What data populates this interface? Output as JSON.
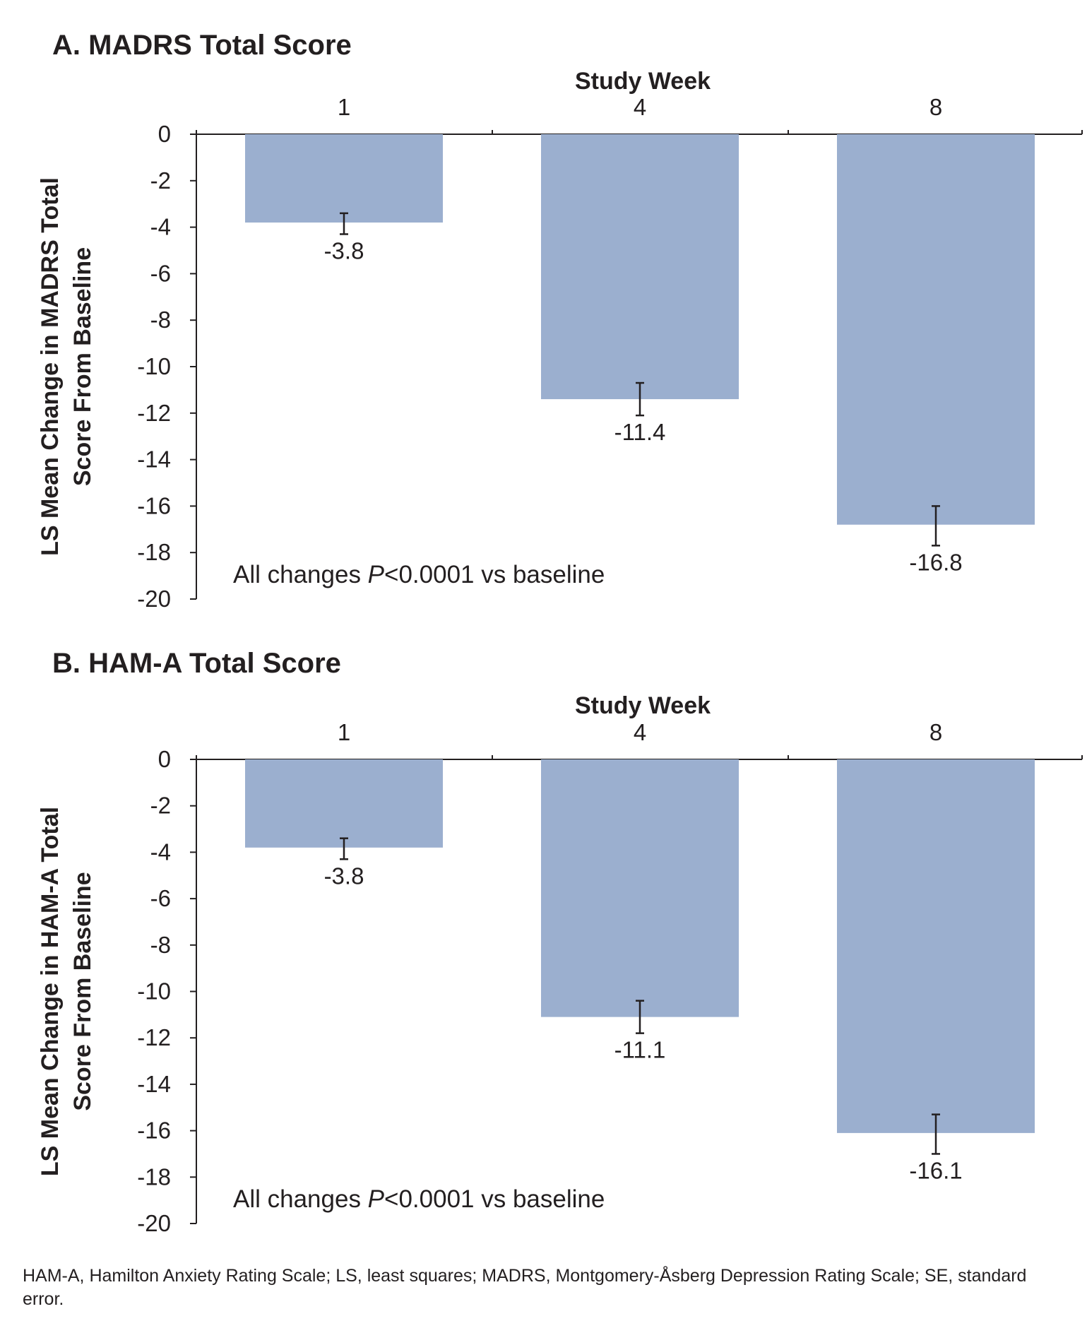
{
  "chart_data": [
    {
      "type": "bar",
      "title": "A. MADRS Total Score",
      "xlabel": "Study Week",
      "ylabel_lines": [
        "LS Mean Change in MADRS Total",
        "Score From Baseline"
      ],
      "categories": [
        "1",
        "4",
        "8"
      ],
      "values": [
        -3.8,
        -11.4,
        -16.8
      ],
      "value_labels": [
        "-3.8",
        "-11.4",
        "-16.8"
      ],
      "error_bars": [
        {
          "low": -4.3,
          "high": -3.4
        },
        {
          "low": -12.1,
          "high": -10.7
        },
        {
          "low": -17.7,
          "high": -16.0
        }
      ],
      "ylim": [
        -20,
        0
      ],
      "yticks": [
        0,
        -2,
        -4,
        -6,
        -8,
        -10,
        -12,
        -14,
        -16,
        -18,
        -20
      ],
      "ytick_labels": [
        "0",
        "-2",
        "-4",
        "-6",
        "-8",
        "-10",
        "-12",
        "-14",
        "-16",
        "-18",
        "-20"
      ],
      "annotation": {
        "prefix": "All changes ",
        "italic": "P",
        "suffix": "<0.0001 vs baseline"
      },
      "bar_color": "#9bafcf",
      "grid": false,
      "legend": "none"
    },
    {
      "type": "bar",
      "title": "B. HAM-A Total Score",
      "xlabel": "Study Week",
      "ylabel_lines": [
        "LS Mean Change in HAM-A Total",
        "Score From Baseline"
      ],
      "categories": [
        "1",
        "4",
        "8"
      ],
      "values": [
        -3.8,
        -11.1,
        -16.1
      ],
      "value_labels": [
        "-3.8",
        "-11.1",
        "-16.1"
      ],
      "error_bars": [
        {
          "low": -4.3,
          "high": -3.4
        },
        {
          "low": -11.8,
          "high": -10.4
        },
        {
          "low": -17.0,
          "high": -15.3
        }
      ],
      "ylim": [
        -20,
        0
      ],
      "yticks": [
        0,
        -2,
        -4,
        -6,
        -8,
        -10,
        -12,
        -14,
        -16,
        -18,
        -20
      ],
      "ytick_labels": [
        "0",
        "-2",
        "-4",
        "-6",
        "-8",
        "-10",
        "-12",
        "-14",
        "-16",
        "-18",
        "-20"
      ],
      "annotation": {
        "prefix": "All changes ",
        "italic": "P",
        "suffix": "<0.0001 vs baseline"
      },
      "bar_color": "#9bafcf",
      "grid": false,
      "legend": "none"
    }
  ],
  "footnote": "HAM-A, Hamilton Anxiety Rating Scale; LS, least squares; MADRS, Montgomery-Åsberg Depression Rating Scale; SE, standard error."
}
